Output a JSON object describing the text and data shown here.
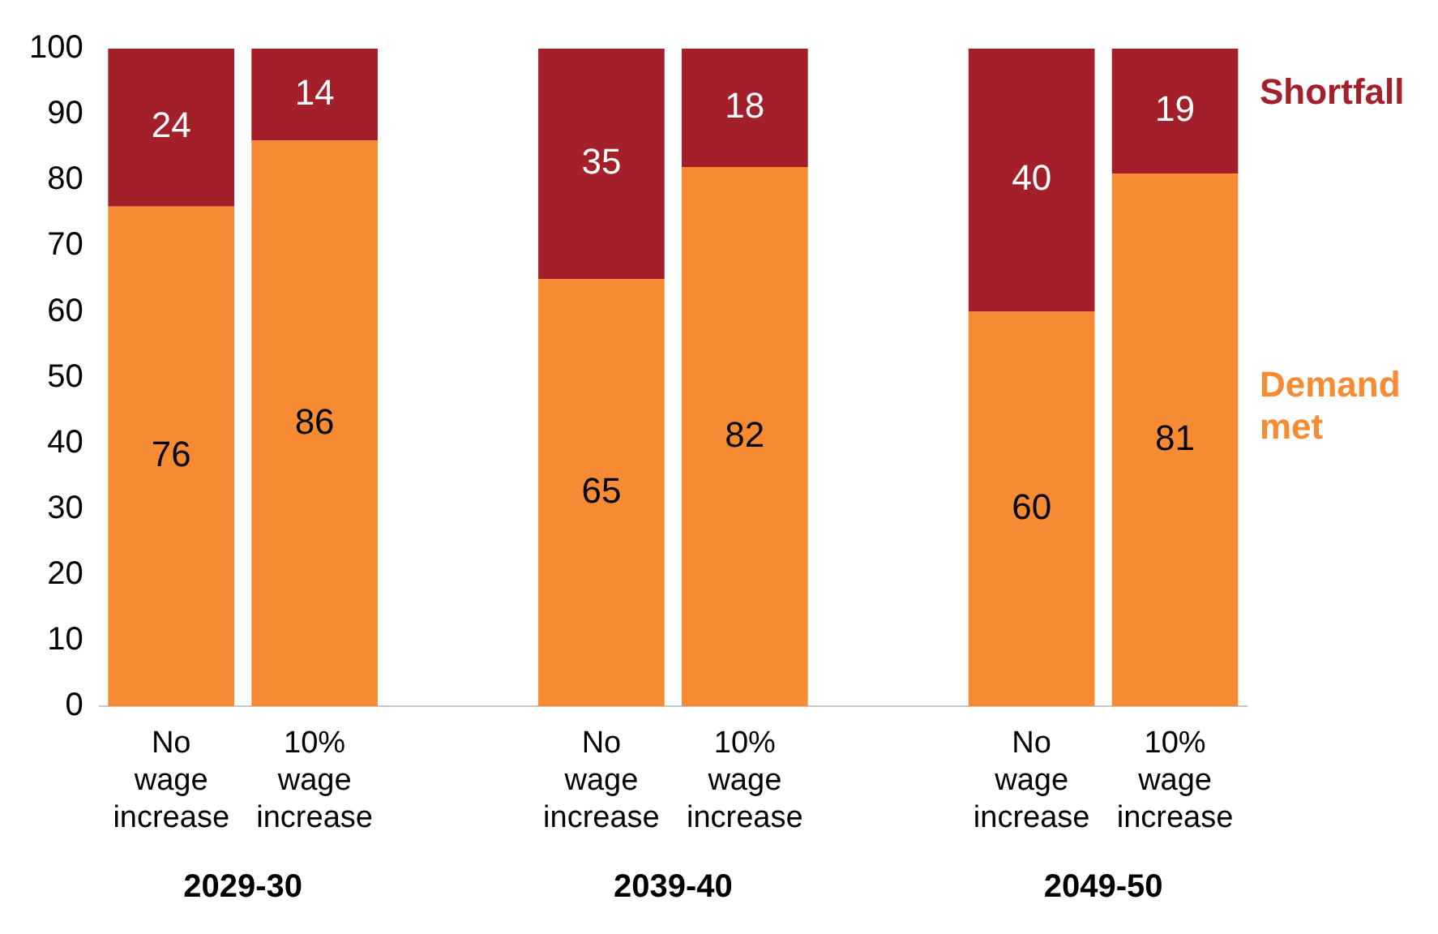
{
  "chart_data": {
    "type": "bar",
    "stacked": true,
    "categories": [
      "No wage increase",
      "10% wage increase",
      null,
      "No wage increase",
      "10% wage increase",
      null,
      "No wage increase",
      "10% wage increase"
    ],
    "series": [
      {
        "name": "Demand met",
        "color": "#f68b33",
        "values": [
          76,
          86,
          null,
          65,
          82,
          null,
          60,
          81
        ]
      },
      {
        "name": "Shortfall",
        "color": "#a3202a",
        "values": [
          24,
          14,
          null,
          35,
          18,
          null,
          40,
          19
        ]
      }
    ],
    "ylim": [
      0,
      100
    ],
    "yticks": [
      0,
      10,
      20,
      30,
      40,
      50,
      60,
      70,
      80,
      90,
      100
    ],
    "data_labels": true,
    "legend": "right",
    "annotations": [
      "2029-30",
      "2039-40",
      "2049-50"
    ]
  }
}
